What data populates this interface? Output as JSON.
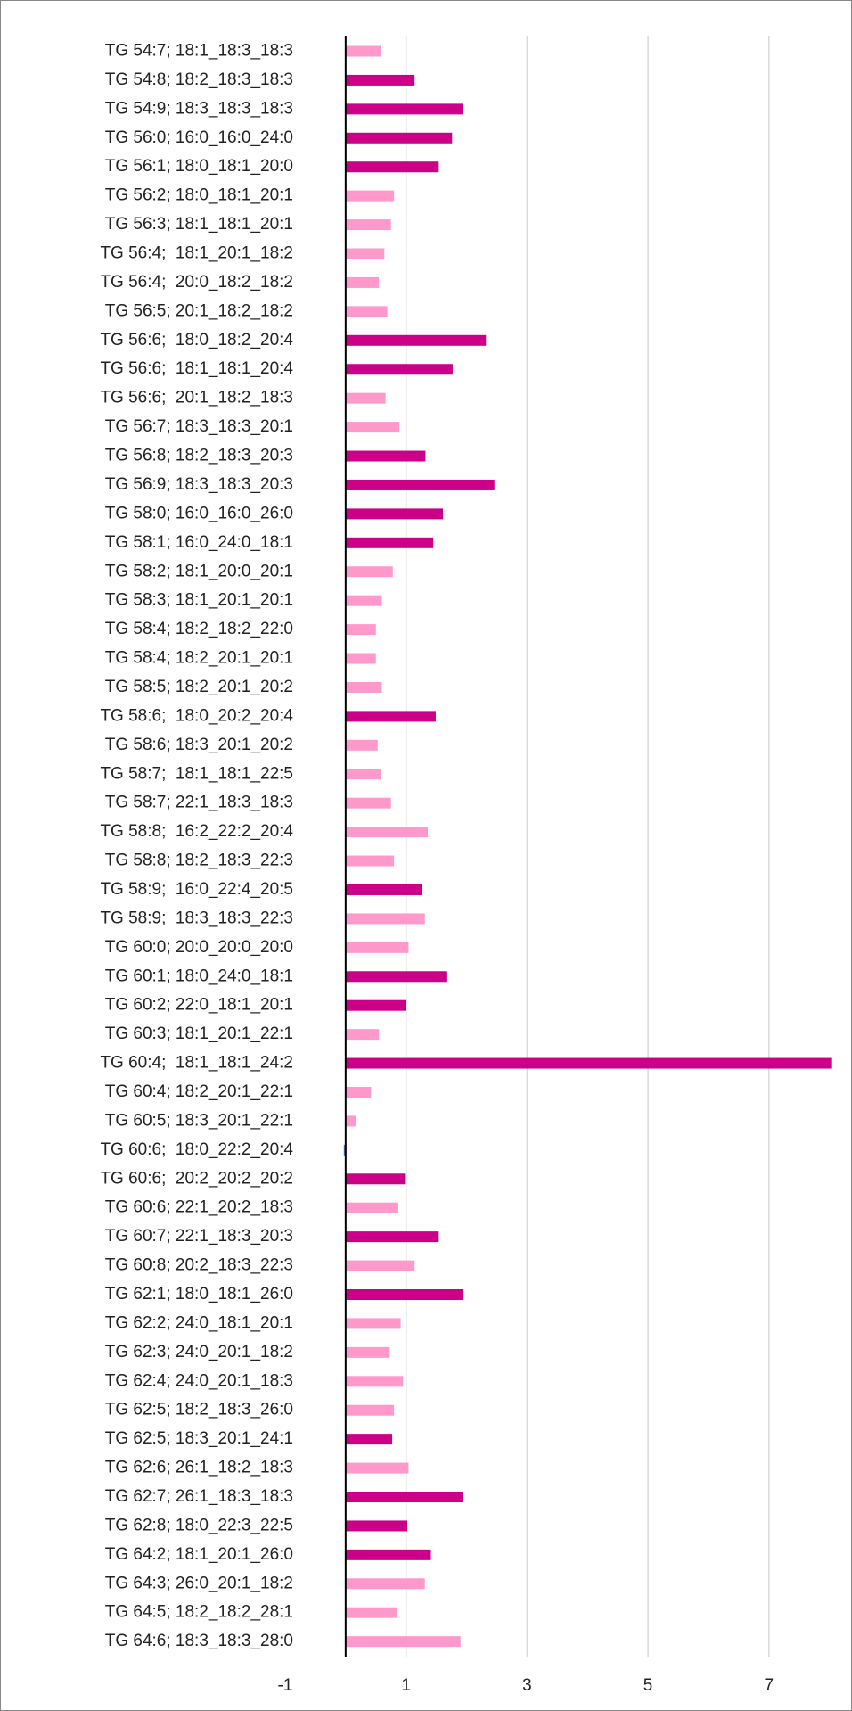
{
  "chart_data": {
    "type": "hbar",
    "categories": [
      "TG 54:7; 18:1_18:3_18:3",
      "TG 54:8; 18:2_18:3_18:3",
      "TG 54:9; 18:3_18:3_18:3",
      "TG 56:0; 16:0_16:0_24:0",
      "TG 56:1; 18:0_18:1_20:0",
      "TG 56:2; 18:0_18:1_20:1",
      "TG 56:3; 18:1_18:1_20:1",
      "TG 56:4;  18:1_20:1_18:2",
      "TG 56:4;  20:0_18:2_18:2",
      "TG 56:5; 20:1_18:2_18:2",
      "TG 56:6;  18:0_18:2_20:4",
      "TG 56:6;  18:1_18:1_20:4",
      "TG 56:6;  20:1_18:2_18:3",
      "TG 56:7; 18:3_18:3_20:1",
      "TG 56:8; 18:2_18:3_20:3",
      "TG 56:9; 18:3_18:3_20:3",
      "TG 58:0; 16:0_16:0_26:0",
      "TG 58:1; 16:0_24:0_18:1",
      "TG 58:2; 18:1_20:0_20:1",
      "TG 58:3; 18:1_20:1_20:1",
      "TG 58:4; 18:2_18:2_22:0",
      "TG 58:4; 18:2_20:1_20:1",
      "TG 58:5; 18:2_20:1_20:2",
      "TG 58:6;  18:0_20:2_20:4",
      "TG 58:6; 18:3_20:1_20:2",
      "TG 58:7;  18:1_18:1_22:5",
      "TG 58:7; 22:1_18:3_18:3",
      "TG 58:8;  16:2_22:2_20:4",
      "TG 58:8; 18:2_18:3_22:3",
      "TG 58:9;  16:0_22:4_20:5",
      "TG 58:9;  18:3_18:3_22:3",
      "TG 60:0; 20:0_20:0_20:0",
      "TG 60:1; 18:0_24:0_18:1",
      "TG 60:2; 22:0_18:1_20:1",
      "TG 60:3; 18:1_20:1_22:1",
      "TG 60:4;  18:1_18:1_24:2",
      "TG 60:4; 18:2_20:1_22:1",
      "TG 60:5; 18:3_20:1_22:1",
      "TG 60:6;  18:0_22:2_20:4",
      "TG 60:6;  20:2_20:2_20:2",
      "TG 60:6; 22:1_20:2_18:3",
      "TG 60:7; 22:1_18:3_20:3",
      "TG 60:8; 20:2_18:3_22:3",
      "TG 62:1; 18:0_18:1_26:0",
      "TG 62:2; 24:0_18:1_20:1",
      "TG 62:3; 24:0_20:1_18:2",
      "TG 62:4; 24:0_20:1_18:3",
      "TG 62:5; 18:2_18:3_26:0",
      "TG 62:5; 18:3_20:1_24:1",
      "TG 62:6; 26:1_18:2_18:3",
      "TG 62:7; 26:1_18:3_18:3",
      "TG 62:8; 18:0_22:3_22:5",
      "TG 64:2; 18:1_20:1_26:0",
      "TG 64:3; 26:0_20:1_18:2",
      "TG 64:5; 18:2_18:2_28:1",
      "TG 64:6; 18:3_18:3_28:0"
    ],
    "values": [
      0.59,
      1.14,
      1.94,
      1.76,
      1.54,
      0.8,
      0.75,
      0.64,
      0.55,
      0.69,
      2.32,
      1.77,
      0.66,
      0.89,
      1.32,
      2.46,
      1.61,
      1.45,
      0.78,
      0.6,
      0.5,
      0.5,
      0.6,
      1.49,
      0.53,
      0.59,
      0.75,
      1.36,
      0.8,
      1.27,
      1.31,
      1.04,
      1.68,
      1,
      0.55,
      8.03,
      0.42,
      0.17,
      -0.03,
      0.98,
      0.87,
      1.54,
      1.14,
      1.95,
      0.91,
      0.73,
      0.95,
      0.8,
      0.77,
      1.04,
      1.94,
      1.02,
      1.41,
      1.31,
      0.86,
      1.9
    ],
    "colors": [
      "#ff99cc",
      "#cc0088",
      "#cc0088",
      "#cc0088",
      "#cc0088",
      "#ff99cc",
      "#ff99cc",
      "#ff99cc",
      "#ff99cc",
      "#ff99cc",
      "#cc0088",
      "#cc0088",
      "#ff99cc",
      "#ff99cc",
      "#cc0088",
      "#cc0088",
      "#cc0088",
      "#cc0088",
      "#ff99cc",
      "#ff99cc",
      "#ff99cc",
      "#ff99cc",
      "#ff99cc",
      "#cc0088",
      "#ff99cc",
      "#ff99cc",
      "#ff99cc",
      "#ff99cc",
      "#ff99cc",
      "#cc0088",
      "#ff99cc",
      "#ff99cc",
      "#cc0088",
      "#cc0088",
      "#ff99cc",
      "#cc0088",
      "#ff99cc",
      "#ff99cc",
      "#4472c4",
      "#cc0088",
      "#ff99cc",
      "#cc0088",
      "#ff99cc",
      "#cc0088",
      "#ff99cc",
      "#ff99cc",
      "#ff99cc",
      "#ff99cc",
      "#cc0088",
      "#ff99cc",
      "#cc0088",
      "#cc0088",
      "#cc0088",
      "#ff99cc",
      "#ff99cc",
      "#ff99cc"
    ],
    "xlim": [
      -1,
      8.3
    ],
    "xticks": [
      -1,
      1,
      3,
      5,
      7
    ],
    "grid": true
  }
}
